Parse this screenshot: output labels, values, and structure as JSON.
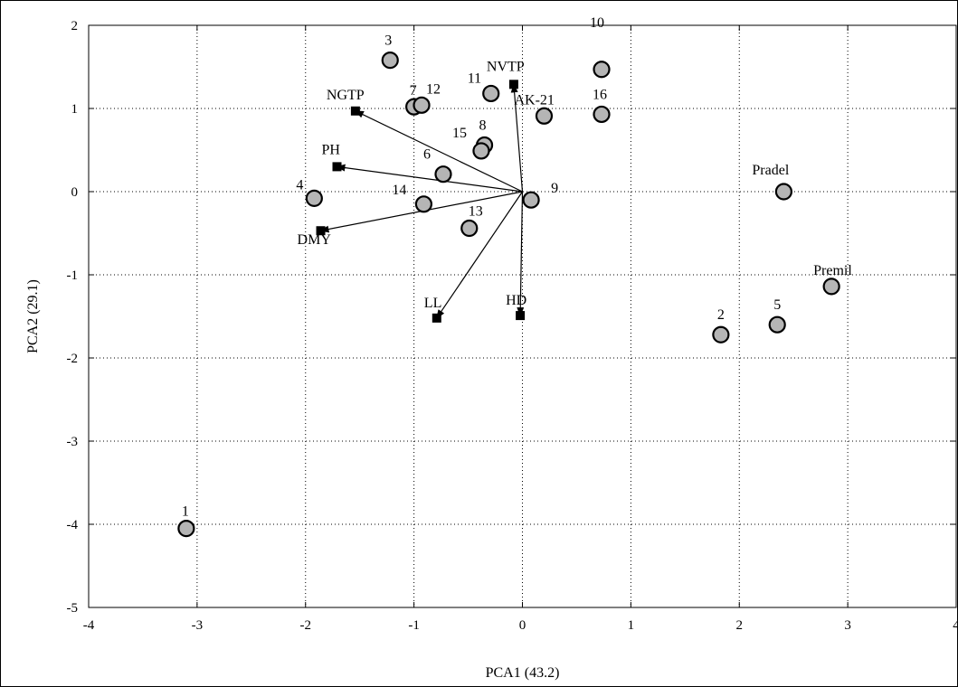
{
  "chart_data": {
    "type": "scatter",
    "subtype": "pca-biplot",
    "title": "",
    "xlabel": "PCA1 (43.2)",
    "ylabel": "PCA2 (29.1)",
    "xlim": [
      -4,
      4
    ],
    "ylim": [
      -5,
      2
    ],
    "x_ticks": [
      -4,
      -3,
      -2,
      -1,
      0,
      1,
      2,
      3,
      4
    ],
    "y_ticks": [
      2,
      1,
      0,
      -1,
      -2,
      -3,
      -4,
      -5
    ],
    "grid": "dotted",
    "legend": "none",
    "marker_fill": "#b5b5b5",
    "marker_stroke": "#000000",
    "vector_origin": [
      0,
      0
    ],
    "observations": [
      {
        "label": "1",
        "x": -3.1,
        "y": -4.05
      },
      {
        "label": "2",
        "x": 1.83,
        "y": -1.72
      },
      {
        "label": "3",
        "x": -1.22,
        "y": 1.58
      },
      {
        "label": "4",
        "x": -1.92,
        "y": -0.08
      },
      {
        "label": "5",
        "x": 2.35,
        "y": -1.6
      },
      {
        "label": "6",
        "x": -0.73,
        "y": 0.21
      },
      {
        "label": "7",
        "x": -1.0,
        "y": 1.02
      },
      {
        "label": "8",
        "x": -0.35,
        "y": 0.56
      },
      {
        "label": "9",
        "x": 0.08,
        "y": -0.1
      },
      {
        "label": "10",
        "x": 0.73,
        "y": 1.47
      },
      {
        "label": "11",
        "x": -0.29,
        "y": 1.18
      },
      {
        "label": "12",
        "x": -0.93,
        "y": 1.04
      },
      {
        "label": "13",
        "x": -0.49,
        "y": -0.44
      },
      {
        "label": "14",
        "x": -0.91,
        "y": -0.15
      },
      {
        "label": "15",
        "x": -0.38,
        "y": 0.49
      },
      {
        "label": "16",
        "x": 0.73,
        "y": 0.93
      },
      {
        "label": "Pradel",
        "x": 2.41,
        "y": 0.0
      },
      {
        "label": "Premil",
        "x": 2.85,
        "y": -1.14
      },
      {
        "label": "AK-21",
        "x": 0.2,
        "y": 0.91
      }
    ],
    "variables": [
      {
        "label": "NVTP",
        "x": -0.08,
        "y": 1.29
      },
      {
        "label": "NGTP",
        "x": -1.54,
        "y": 0.97
      },
      {
        "label": "PH",
        "x": -1.71,
        "y": 0.3
      },
      {
        "label": "DMY",
        "x": -1.86,
        "y": -0.47
      },
      {
        "label": "LL",
        "x": -0.79,
        "y": -1.52
      },
      {
        "label": "HD",
        "x": -0.02,
        "y": -1.49
      }
    ]
  }
}
